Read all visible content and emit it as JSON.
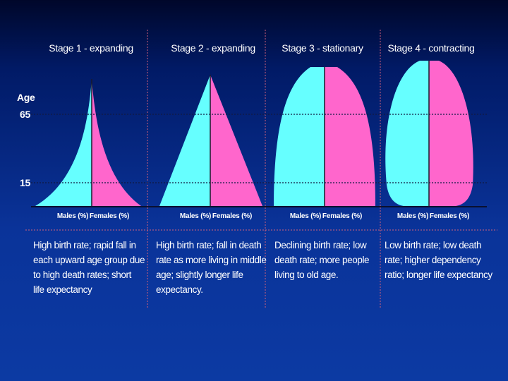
{
  "axis": {
    "title": "Age",
    "ticks": [
      {
        "label": "65",
        "value": 65
      },
      {
        "label": "15",
        "value": 15
      }
    ]
  },
  "stages": [
    {
      "title": "Stage 1 - expanding",
      "males_label": "Males (%)",
      "females_label": "Females (%)",
      "shape": "concave-peak",
      "description_lines": [
        "High birth rate; rapid fall in",
        "each upward age group due",
        "to high death rates; short",
        "life expectancy"
      ]
    },
    {
      "title": "Stage 2 - expanding",
      "males_label": "Males (%)",
      "females_label": "Females (%)",
      "shape": "triangle",
      "description_lines": [
        "High birth rate; fall in death",
        "rate as more living in middle",
        "age; slightly longer life",
        "expectancy."
      ]
    },
    {
      "title": "Stage 3 - stationary",
      "males_label": "Males (%)",
      "females_label": "Females (%)",
      "shape": "dome",
      "description_lines": [
        "Declining birth rate; low",
        "death rate; more people",
        "living to old age."
      ]
    },
    {
      "title": "Stage 4 - contracting",
      "males_label": "Males (%)",
      "females_label": "Females (%)",
      "shape": "bulge",
      "description_lines": [
        "Low birth rate; low death",
        "rate; higher dependency",
        "ratio; longer life expectancy"
      ]
    }
  ],
  "colors": {
    "males": "#66ffff",
    "females": "#ff66cc",
    "background": "#0a3399",
    "divider": "#d0607a",
    "guide": "#111a40"
  }
}
